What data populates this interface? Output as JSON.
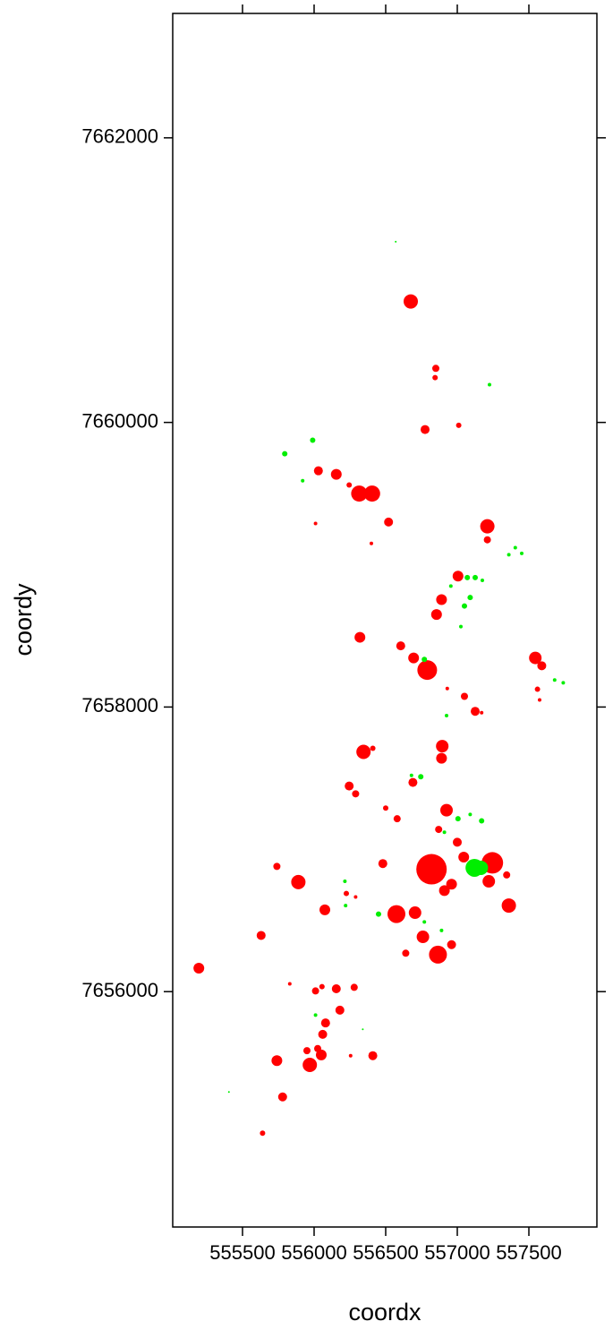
{
  "chart_data": {
    "type": "bubble",
    "xlabel": "coordx",
    "ylabel": "coordy",
    "xlim": [
      555012.5,
      557975
    ],
    "ylim": [
      7654346,
      7662874
    ],
    "xticks": [
      555500,
      556000,
      556500,
      557000,
      557500
    ],
    "yticks": [
      7656000,
      7658000,
      7660000,
      7662000
    ],
    "series": [
      {
        "color": "#ff0000",
        "x": [
          556675,
          556850,
          556845,
          556775,
          557010,
          556030,
          556155,
          556245,
          556315,
          556405,
          556010,
          556520,
          556400,
          557210,
          557210,
          557005,
          556890,
          556855,
          556320,
          556605,
          556695,
          556790,
          557545,
          557590,
          557560,
          557575,
          557050,
          557125,
          557170,
          556930,
          556895,
          556345,
          556410,
          556890,
          556245,
          556290,
          556690,
          556500,
          556580,
          556925,
          556870,
          557000,
          557045,
          556480,
          556820,
          557245,
          555740,
          555890,
          557220,
          557345,
          556960,
          556910,
          556225,
          556290,
          556075,
          557360,
          556705,
          556575,
          555630,
          556760,
          556960,
          556640,
          556865,
          555195,
          555830,
          556010,
          556055,
          556155,
          556280,
          556180,
          556080,
          556060,
          556025,
          555950,
          556050,
          555740,
          555970,
          556255,
          556410,
          555780,
          555640
        ],
        "y": [
          7660850,
          7660380,
          7660315,
          7659950,
          7659980,
          7659660,
          7659635,
          7659560,
          7659500,
          7659500,
          7659290,
          7659300,
          7659150,
          7659270,
          7659175,
          7658920,
          7658755,
          7658650,
          7658490,
          7658430,
          7658345,
          7658260,
          7658345,
          7658290,
          7658125,
          7658050,
          7658075,
          7657970,
          7657960,
          7658130,
          7657725,
          7657685,
          7657710,
          7657640,
          7657445,
          7657390,
          7657470,
          7657290,
          7657215,
          7657275,
          7657140,
          7657050,
          7656945,
          7656900,
          7656860,
          7656905,
          7656880,
          7656770,
          7656775,
          7656820,
          7656755,
          7656710,
          7656690,
          7656665,
          7656575,
          7656605,
          7656555,
          7656545,
          7656395,
          7656385,
          7656330,
          7656270,
          7656260,
          7656165,
          7656055,
          7656005,
          7656035,
          7656020,
          7656030,
          7655870,
          7655780,
          7655700,
          7655600,
          7655585,
          7655555,
          7655515,
          7655485,
          7655550,
          7655550,
          7655260,
          7655005
        ],
        "sizes": [
          8,
          4,
          3,
          5,
          3,
          5,
          6,
          3,
          9,
          9,
          2,
          5,
          2,
          8,
          4,
          6,
          6,
          6,
          6,
          5,
          6,
          11,
          7,
          5,
          3,
          2,
          4,
          5,
          2,
          2,
          7,
          8,
          3,
          6,
          5,
          4,
          5,
          3,
          4,
          7,
          4,
          5,
          6,
          5,
          17,
          12,
          4,
          8,
          7,
          4,
          6,
          6,
          3,
          2,
          6,
          8,
          7,
          10,
          5,
          7,
          5,
          4,
          10,
          6,
          2,
          4,
          3,
          5,
          4,
          5,
          5,
          5,
          4,
          4,
          6,
          6,
          8,
          2,
          5,
          5,
          3
        ]
      },
      {
        "color": "#00ee00",
        "x": [
          555795,
          555990,
          555920,
          557225,
          556570,
          557360,
          557405,
          557450,
          557070,
          557125,
          557175,
          557090,
          557050,
          556955,
          557025,
          556770,
          557740,
          557680,
          556925,
          556745,
          556680,
          557090,
          557005,
          557170,
          556910,
          557120,
          557165,
          556215,
          556220,
          556450,
          556770,
          556890,
          556010,
          555405,
          556340
        ],
        "y": [
          7659780,
          7659875,
          7659590,
          7660265,
          7661270,
          7659070,
          7659120,
          7659080,
          7658910,
          7658910,
          7658890,
          7658770,
          7658710,
          7658850,
          7658565,
          7658335,
          7658170,
          7658190,
          7657940,
          7657510,
          7657520,
          7657245,
          7657215,
          7657200,
          7657120,
          7656870,
          7656870,
          7656775,
          7656605,
          7656545,
          7656490,
          7656430,
          7655835,
          7655295,
          7655735
        ],
        "sizes": [
          3,
          3,
          2,
          2,
          1,
          2,
          2,
          2,
          3,
          3,
          2,
          3,
          3,
          2,
          2,
          3,
          2,
          2,
          2,
          3,
          2,
          2,
          3,
          3,
          2,
          10,
          8,
          2,
          2,
          3,
          2,
          2,
          2,
          1,
          1
        ]
      }
    ]
  }
}
